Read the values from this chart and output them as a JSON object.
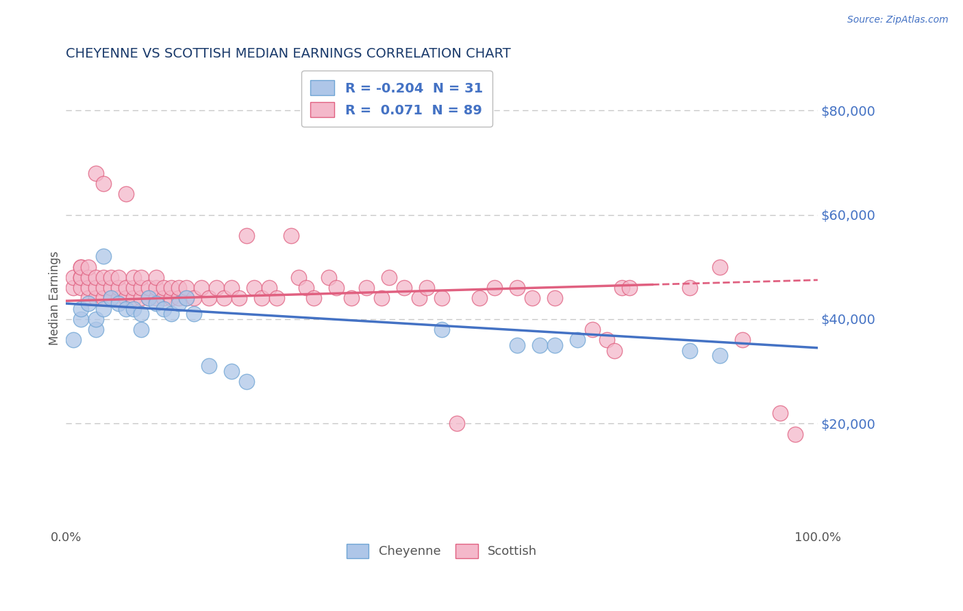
{
  "title": "CHEYENNE VS SCOTTISH MEDIAN EARNINGS CORRELATION CHART",
  "source_text": "Source: ZipAtlas.com",
  "ylabel": "Median Earnings",
  "yticks": [
    0,
    20000,
    40000,
    60000,
    80000
  ],
  "ytick_labels": [
    "",
    "$20,000",
    "$40,000",
    "$60,000",
    "$80,000"
  ],
  "ylim": [
    0,
    88000
  ],
  "xlim": [
    0.0,
    1.0
  ],
  "xtick_labels": [
    "0.0%",
    "100.0%"
  ],
  "title_color": "#1a3a6b",
  "axis_label_color": "#555555",
  "ytick_color": "#4472c4",
  "xtick_color": "#555555",
  "grid_color": "#c8c8c8",
  "background_color": "#ffffff",
  "cheyenne_color": "#aec6e8",
  "cheyenne_edge_color": "#6ea4d4",
  "scottish_color": "#f4b8ca",
  "scottish_edge_color": "#e06080",
  "cheyenne_line_color": "#4472c4",
  "scottish_line_color": "#e06080",
  "legend_box_cheyenne": "#aec6e8",
  "legend_box_scottish": "#f4b8ca",
  "legend_edge_cheyenne": "#6ea4d4",
  "legend_edge_scottish": "#e06080",
  "cheyenne_R": -0.204,
  "cheyenne_N": 31,
  "scottish_R": 0.071,
  "scottish_N": 89,
  "cheyenne_line_x0": 0.0,
  "cheyenne_line_y0": 43000,
  "cheyenne_line_x1": 1.0,
  "cheyenne_line_y1": 34500,
  "scottish_line_x0": 0.0,
  "scottish_line_y0": 43500,
  "scottish_line_x1": 1.0,
  "scottish_line_y1": 47500,
  "scottish_line_solid_end": 0.78,
  "cheyenne_x": [
    0.01,
    0.02,
    0.02,
    0.03,
    0.04,
    0.04,
    0.05,
    0.05,
    0.06,
    0.07,
    0.08,
    0.09,
    0.1,
    0.1,
    0.11,
    0.12,
    0.13,
    0.14,
    0.15,
    0.16,
    0.17,
    0.19,
    0.22,
    0.24,
    0.5,
    0.6,
    0.63,
    0.65,
    0.68,
    0.83,
    0.87
  ],
  "cheyenne_y": [
    36000,
    40000,
    42000,
    43000,
    38000,
    40000,
    52000,
    42000,
    44000,
    43000,
    42000,
    42000,
    41000,
    38000,
    44000,
    43000,
    42000,
    41000,
    43000,
    44000,
    41000,
    31000,
    30000,
    28000,
    38000,
    35000,
    35000,
    35000,
    36000,
    34000,
    33000
  ],
  "scottish_x": [
    0.01,
    0.01,
    0.02,
    0.02,
    0.02,
    0.02,
    0.02,
    0.03,
    0.03,
    0.03,
    0.03,
    0.04,
    0.04,
    0.04,
    0.04,
    0.05,
    0.05,
    0.05,
    0.05,
    0.06,
    0.06,
    0.06,
    0.07,
    0.07,
    0.07,
    0.08,
    0.08,
    0.08,
    0.09,
    0.09,
    0.09,
    0.1,
    0.1,
    0.1,
    0.11,
    0.11,
    0.12,
    0.12,
    0.12,
    0.13,
    0.13,
    0.14,
    0.14,
    0.15,
    0.15,
    0.16,
    0.16,
    0.17,
    0.18,
    0.19,
    0.2,
    0.21,
    0.22,
    0.23,
    0.24,
    0.25,
    0.26,
    0.27,
    0.28,
    0.3,
    0.31,
    0.32,
    0.33,
    0.35,
    0.36,
    0.38,
    0.4,
    0.42,
    0.43,
    0.45,
    0.47,
    0.48,
    0.5,
    0.52,
    0.55,
    0.57,
    0.6,
    0.62,
    0.65,
    0.7,
    0.72,
    0.73,
    0.74,
    0.75,
    0.83,
    0.87,
    0.9,
    0.95,
    0.97
  ],
  "scottish_y": [
    46000,
    48000,
    50000,
    48000,
    46000,
    48000,
    50000,
    44000,
    46000,
    48000,
    50000,
    44000,
    46000,
    48000,
    68000,
    44000,
    46000,
    48000,
    66000,
    44000,
    46000,
    48000,
    44000,
    46000,
    48000,
    44000,
    46000,
    64000,
    44000,
    46000,
    48000,
    44000,
    46000,
    48000,
    44000,
    46000,
    44000,
    46000,
    48000,
    44000,
    46000,
    44000,
    46000,
    44000,
    46000,
    44000,
    46000,
    44000,
    46000,
    44000,
    46000,
    44000,
    46000,
    44000,
    56000,
    46000,
    44000,
    46000,
    44000,
    56000,
    48000,
    46000,
    44000,
    48000,
    46000,
    44000,
    46000,
    44000,
    48000,
    46000,
    44000,
    46000,
    44000,
    20000,
    44000,
    46000,
    46000,
    44000,
    44000,
    38000,
    36000,
    34000,
    46000,
    46000,
    46000,
    50000,
    36000,
    22000,
    18000
  ]
}
